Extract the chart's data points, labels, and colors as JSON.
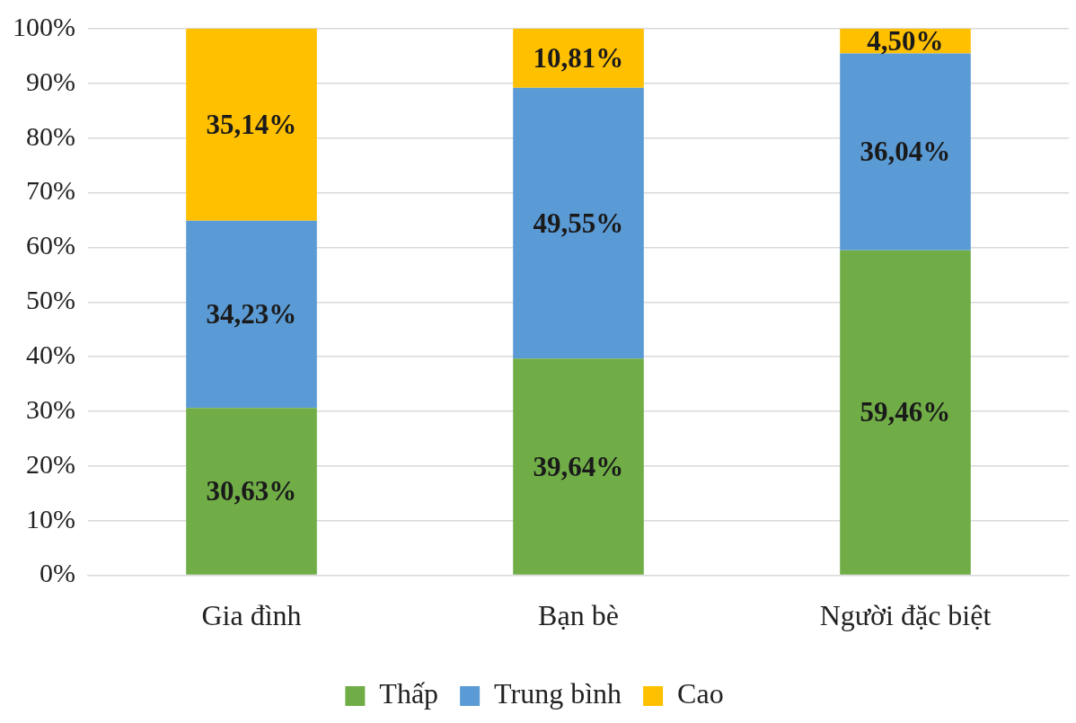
{
  "chart_data": {
    "type": "bar",
    "stacked": true,
    "categories": [
      "Gia đình",
      "Bạn bè",
      "Người đặc biệt"
    ],
    "series": [
      {
        "name": "Thấp",
        "color": "#70ad47",
        "values": [
          30.63,
          39.64,
          59.46
        ],
        "value_labels": [
          "30,63%",
          "39,64%",
          "59,46%"
        ]
      },
      {
        "name": "Trung bình",
        "color": "#5b9bd5",
        "values": [
          34.23,
          49.55,
          36.04
        ],
        "value_labels": [
          "34,23%",
          "49,55%",
          "36,04%"
        ]
      },
      {
        "name": "Cao",
        "color": "#ffc000",
        "values": [
          35.14,
          10.81,
          4.5
        ],
        "value_labels": [
          "35,14%",
          "10,81%",
          "4,50%"
        ]
      }
    ],
    "ylim": [
      0,
      100
    ],
    "yticks": [
      {
        "value": 0,
        "label": "0%"
      },
      {
        "value": 10,
        "label": "10%"
      },
      {
        "value": 20,
        "label": "20%"
      },
      {
        "value": 30,
        "label": "30%"
      },
      {
        "value": 40,
        "label": "40%"
      },
      {
        "value": 50,
        "label": "50%"
      },
      {
        "value": 60,
        "label": "60%"
      },
      {
        "value": 70,
        "label": "70%"
      },
      {
        "value": 80,
        "label": "80%"
      },
      {
        "value": 90,
        "label": "90%"
      },
      {
        "value": 100,
        "label": "100%"
      }
    ],
    "grid": "y",
    "legend": "bottom"
  }
}
